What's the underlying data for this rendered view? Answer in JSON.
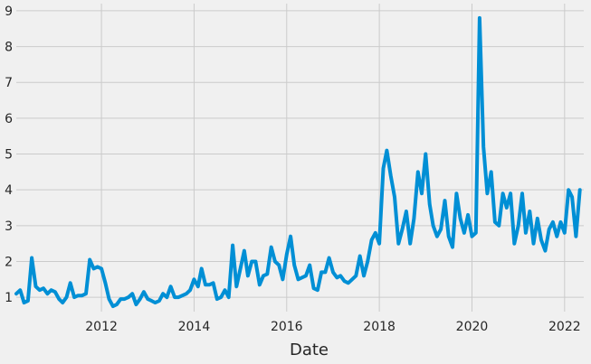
{
  "chart_data": {
    "type": "line",
    "title": "",
    "xlabel": "Date",
    "ylabel": "",
    "x_ticks": [
      "2012",
      "2014",
      "2016",
      "2018",
      "2020",
      "2022"
    ],
    "y_ticks": [
      "1",
      "2",
      "3",
      "4",
      "5",
      "6",
      "7",
      "8",
      "9"
    ],
    "xlim": [
      "2010-03-01",
      "2022-06-01"
    ],
    "ylim": [
      0.6,
      9.2
    ],
    "grid": true,
    "line_color": "#008fd5",
    "series": [
      {
        "x": [
          "2010-03-01",
          "2010-04-01",
          "2010-05-01",
          "2010-06-01",
          "2010-07-01",
          "2010-08-01",
          "2010-09-01",
          "2010-10-01",
          "2010-11-01",
          "2010-12-01",
          "2011-01-01",
          "2011-02-01",
          "2011-03-01",
          "2011-04-01",
          "2011-05-01",
          "2011-06-01",
          "2011-07-01",
          "2011-08-01",
          "2011-09-01",
          "2011-10-01",
          "2011-11-01",
          "2011-12-01",
          "2012-01-01",
          "2012-02-01",
          "2012-03-01",
          "2012-04-01",
          "2012-05-01",
          "2012-06-01",
          "2012-07-01",
          "2012-08-01",
          "2012-09-01",
          "2012-10-01",
          "2012-11-01",
          "2012-12-01",
          "2013-01-01",
          "2013-02-01",
          "2013-03-01",
          "2013-04-01",
          "2013-05-01",
          "2013-06-01",
          "2013-07-01",
          "2013-08-01",
          "2013-09-01",
          "2013-10-01",
          "2013-11-01",
          "2013-12-01",
          "2014-01-01",
          "2014-02-01",
          "2014-03-01",
          "2014-04-01",
          "2014-05-01",
          "2014-06-01",
          "2014-07-01",
          "2014-08-01",
          "2014-09-01",
          "2014-10-01",
          "2014-11-01",
          "2014-12-01",
          "2015-01-01",
          "2015-02-01",
          "2015-03-01",
          "2015-04-01",
          "2015-05-01",
          "2015-06-01",
          "2015-07-01",
          "2015-08-01",
          "2015-09-01",
          "2015-10-01",
          "2015-11-01",
          "2015-12-01",
          "2016-01-01",
          "2016-02-01",
          "2016-03-01",
          "2016-04-01",
          "2016-05-01",
          "2016-06-01",
          "2016-07-01",
          "2016-08-01",
          "2016-09-01",
          "2016-10-01",
          "2016-11-01",
          "2016-12-01",
          "2017-01-01",
          "2017-02-01",
          "2017-03-01",
          "2017-04-01",
          "2017-05-01",
          "2017-06-01",
          "2017-07-01",
          "2017-08-01",
          "2017-09-01",
          "2017-10-01",
          "2017-11-01",
          "2017-12-01",
          "2018-01-01",
          "2018-02-01",
          "2018-03-01",
          "2018-04-01",
          "2018-05-01",
          "2018-06-01",
          "2018-07-01",
          "2018-08-01",
          "2018-09-01",
          "2018-10-01",
          "2018-11-01",
          "2018-12-01",
          "2019-01-01",
          "2019-02-01",
          "2019-03-01",
          "2019-04-01",
          "2019-05-01",
          "2019-06-01",
          "2019-07-01",
          "2019-08-01",
          "2019-09-01",
          "2019-10-01",
          "2019-11-01",
          "2019-12-01",
          "2020-01-01",
          "2020-02-01",
          "2020-03-01",
          "2020-04-01",
          "2020-05-01",
          "2020-06-01",
          "2020-07-01",
          "2020-08-01",
          "2020-09-01",
          "2020-10-01",
          "2020-11-01",
          "2020-12-01",
          "2021-01-01",
          "2021-02-01",
          "2021-03-01",
          "2021-04-01",
          "2021-05-01",
          "2021-06-01",
          "2021-07-01",
          "2021-08-01",
          "2021-09-01",
          "2021-10-01",
          "2021-11-01",
          "2021-12-01",
          "2022-01-01",
          "2022-02-01",
          "2022-03-01",
          "2022-04-01",
          "2022-05-01"
        ],
        "values": [
          1.1,
          1.2,
          0.85,
          0.9,
          2.1,
          1.3,
          1.2,
          1.25,
          1.1,
          1.2,
          1.15,
          0.95,
          0.85,
          1.0,
          1.4,
          1.0,
          1.05,
          1.05,
          1.1,
          2.05,
          1.8,
          1.85,
          1.8,
          1.4,
          0.95,
          0.75,
          0.8,
          0.95,
          0.95,
          1.0,
          1.1,
          0.8,
          0.95,
          1.15,
          0.95,
          0.9,
          0.85,
          0.9,
          1.1,
          1.0,
          1.3,
          1.0,
          1.0,
          1.05,
          1.1,
          1.2,
          1.5,
          1.3,
          1.8,
          1.35,
          1.35,
          1.4,
          0.95,
          1.0,
          1.2,
          1.0,
          2.45,
          1.3,
          1.8,
          2.3,
          1.6,
          2.0,
          2.0,
          1.35,
          1.6,
          1.65,
          2.4,
          2.0,
          1.9,
          1.5,
          2.2,
          2.7,
          1.9,
          1.5,
          1.55,
          1.6,
          1.9,
          1.25,
          1.2,
          1.7,
          1.7,
          2.1,
          1.7,
          1.55,
          1.6,
          1.45,
          1.4,
          1.5,
          1.6,
          2.15,
          1.6,
          2.0,
          2.6,
          2.8,
          2.5,
          4.6,
          5.1,
          4.4,
          3.8,
          2.5,
          2.9,
          3.4,
          2.5,
          3.2,
          4.5,
          3.9,
          5.0,
          3.6,
          3.0,
          2.7,
          2.9,
          3.7,
          2.7,
          2.4,
          3.9,
          3.2,
          2.8,
          3.3,
          2.7,
          2.8,
          8.8,
          5.2,
          3.9,
          4.5,
          3.1,
          3.0,
          3.9,
          3.5,
          3.9,
          2.5,
          3.0,
          3.9,
          2.8,
          3.4,
          2.5,
          3.2,
          2.6,
          2.3,
          2.9,
          3.1,
          2.7,
          3.1,
          2.8,
          4.0,
          3.8,
          2.7,
          4.0
        ]
      }
    ]
  }
}
